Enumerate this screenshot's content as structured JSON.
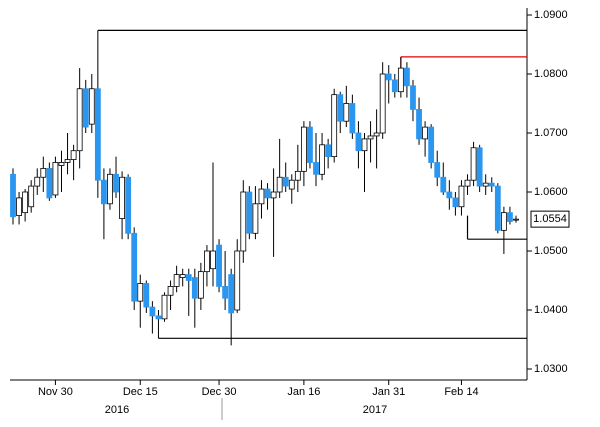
{
  "chart_data": {
    "type": "candlestick",
    "categories": [
      null,
      null,
      null,
      null,
      null,
      null,
      null,
      "Nov 30",
      null,
      null,
      null,
      null,
      null,
      null,
      null,
      null,
      null,
      null,
      null,
      null,
      null,
      "Dec 15",
      null,
      null,
      null,
      null,
      null,
      null,
      null,
      null,
      null,
      null,
      null,
      null,
      "Dec 30",
      null,
      null,
      null,
      null,
      null,
      null,
      null,
      null,
      null,
      null,
      null,
      null,
      null,
      "Jan 16",
      null,
      null,
      null,
      null,
      null,
      null,
      null,
      null,
      null,
      null,
      null,
      null,
      null,
      "Jan 31",
      null,
      null,
      null,
      null,
      null,
      null,
      null,
      null,
      null,
      null,
      null,
      "Feb 14",
      null,
      null,
      null,
      null,
      null,
      null,
      null,
      null,
      null
    ],
    "open": [
      1.063,
      1.056,
      1.0565,
      1.0575,
      1.061,
      1.0625,
      1.064,
      1.0595,
      1.0645,
      1.065,
      1.0655,
      1.067,
      1.0775,
      1.0715,
      1.0775,
      1.062,
      1.058,
      1.063,
      1.0555,
      1.0625,
      1.053,
      1.0415,
      1.0445,
      1.0405,
      1.039,
      1.0385,
      1.0425,
      1.044,
      1.0455,
      1.046,
      1.0455,
      1.042,
      1.0465,
      1.047,
      1.051,
      1.044,
      1.046,
      1.04,
      1.05,
      1.06,
      1.053,
      1.058,
      1.0605,
      1.059,
      1.06,
      1.0625,
      1.0605,
      1.062,
      1.0635,
      1.071,
      1.065,
      1.063,
      1.068,
      1.066,
      1.0765,
      1.072,
      1.075,
      1.07,
      1.067,
      1.069,
      1.0695,
      1.07,
      1.08,
      1.079,
      1.077,
      1.081,
      1.078,
      1.074,
      1.069,
      1.071,
      1.065,
      1.0625,
      1.06,
      1.059,
      1.0575,
      1.061,
      1.062,
      1.0675,
      1.061,
      1.0615,
      1.061,
      1.0535,
      1.0565,
      1.0553
    ],
    "high": [
      1.064,
      1.06,
      1.0605,
      1.062,
      1.064,
      1.066,
      1.065,
      1.066,
      1.067,
      1.07,
      1.068,
      1.081,
      1.079,
      1.08,
      1.0874,
      1.064,
      1.064,
      1.066,
      1.0635,
      1.063,
      1.054,
      1.046,
      1.045,
      1.0415,
      1.04,
      1.043,
      1.045,
      1.0475,
      1.047,
      1.047,
      1.047,
      1.048,
      1.051,
      1.065,
      1.052,
      1.05,
      1.047,
      1.052,
      1.062,
      1.061,
      1.061,
      1.062,
      1.0615,
      1.064,
      1.069,
      1.065,
      1.063,
      1.068,
      1.072,
      1.072,
      1.07,
      1.07,
      1.069,
      1.0775,
      1.077,
      1.078,
      1.0765,
      1.072,
      1.07,
      1.072,
      1.074,
      1.082,
      1.0815,
      1.08,
      1.0829,
      1.082,
      1.079,
      1.076,
      1.072,
      1.0715,
      1.067,
      1.065,
      1.062,
      1.06,
      1.062,
      1.063,
      1.0685,
      1.068,
      1.063,
      1.0625,
      1.0615,
      1.0575,
      1.0575,
      1.056
    ],
    "low": [
      1.0545,
      1.0545,
      1.055,
      1.0565,
      1.0595,
      1.06,
      1.0585,
      1.059,
      1.06,
      1.063,
      1.062,
      1.064,
      1.07,
      1.07,
      1.059,
      1.052,
      1.057,
      1.059,
      1.052,
      1.052,
      1.04,
      1.037,
      1.0395,
      1.036,
      1.0352,
      1.038,
      1.04,
      1.043,
      1.044,
      1.039,
      1.037,
      1.04,
      1.044,
      1.044,
      1.043,
      1.04,
      1.034,
      1.0395,
      1.048,
      1.052,
      1.052,
      1.0555,
      1.057,
      1.049,
      1.059,
      1.06,
      1.058,
      1.06,
      1.061,
      1.064,
      1.061,
      1.062,
      1.064,
      1.065,
      1.07,
      1.071,
      1.069,
      1.064,
      1.06,
      1.065,
      1.064,
      1.069,
      1.075,
      1.076,
      1.076,
      1.076,
      1.072,
      1.068,
      1.066,
      1.064,
      1.061,
      1.0595,
      1.057,
      1.056,
      1.056,
      1.0595,
      1.061,
      1.06,
      1.0595,
      1.06,
      1.053,
      1.0495,
      1.0545,
      1.0548
    ],
    "close": [
      1.0558,
      1.059,
      1.06,
      1.061,
      1.0625,
      1.064,
      1.059,
      1.065,
      1.065,
      1.0655,
      1.067,
      1.0775,
      1.071,
      1.0775,
      1.062,
      1.058,
      1.063,
      1.06,
      1.0625,
      1.053,
      1.0415,
      1.0445,
      1.0405,
      1.039,
      1.0385,
      1.0425,
      1.044,
      1.046,
      1.046,
      1.045,
      1.042,
      1.0465,
      1.05,
      1.05,
      1.044,
      1.042,
      1.0395,
      1.05,
      1.06,
      1.053,
      1.058,
      1.0605,
      1.059,
      1.06,
      1.0625,
      1.061,
      1.062,
      1.0635,
      1.071,
      1.065,
      1.063,
      1.068,
      1.066,
      1.0765,
      1.072,
      1.075,
      1.07,
      1.067,
      1.069,
      1.0695,
      1.07,
      1.08,
      1.079,
      1.077,
      1.081,
      1.078,
      1.074,
      1.069,
      1.071,
      1.065,
      1.0625,
      1.06,
      1.059,
      1.0575,
      1.061,
      1.062,
      1.0675,
      1.061,
      1.0615,
      1.061,
      1.0535,
      1.0565,
      1.055,
      1.0554
    ],
    "up_color": "#ffffff",
    "down_color": "#2a96f0",
    "year_labels": [
      "2016",
      "2017"
    ],
    "levels": [
      {
        "value": 1.0874,
        "color": "#000000"
      },
      {
        "value": 1.0829,
        "color": "#e00000"
      },
      {
        "value": 1.0352,
        "color": "#000000"
      },
      {
        "value": 1.052,
        "color": "#000000"
      }
    ],
    "ylim": [
      1.03,
      1.09
    ],
    "yticks": [
      {
        "value": 1.03,
        "label": "1.0300"
      },
      {
        "value": 1.04,
        "label": "1.0400"
      },
      {
        "value": 1.05,
        "label": "1.0500"
      },
      {
        "value": 1.06,
        "label": "1.0600"
      },
      {
        "value": 1.07,
        "label": "1.0700"
      },
      {
        "value": 1.08,
        "label": "1.0800"
      },
      {
        "value": 1.09,
        "label": "1.0900"
      }
    ]
  }
}
